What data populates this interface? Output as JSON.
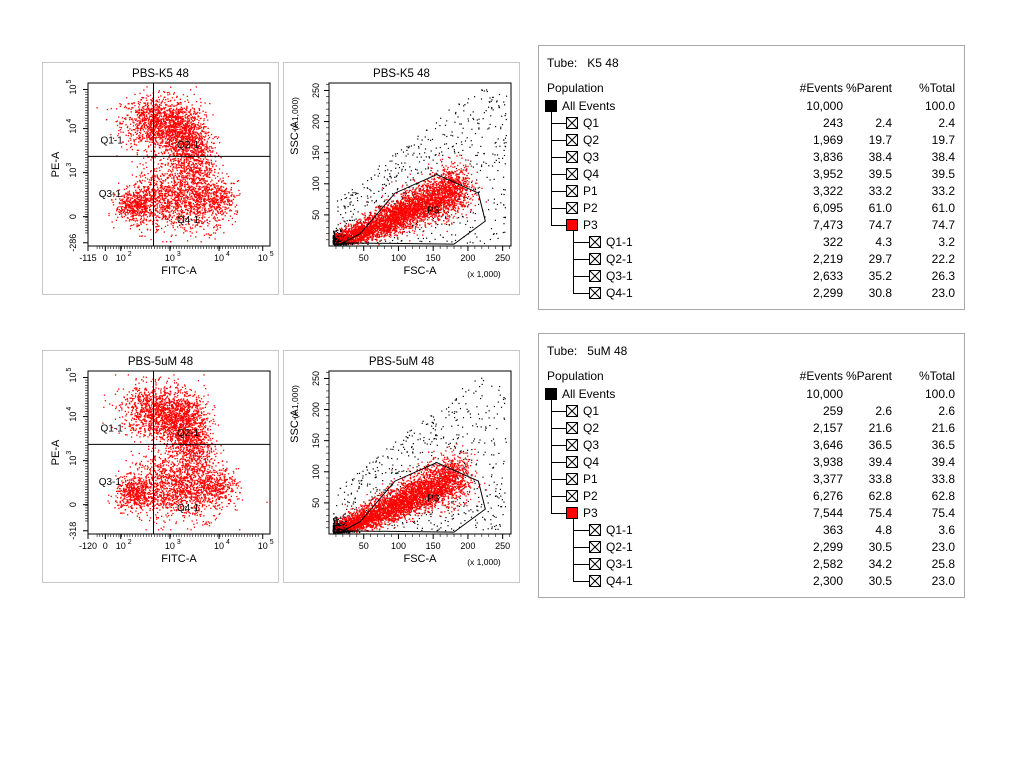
{
  "sets": [
    {
      "quad": {
        "title": "PBS-K5 48",
        "xlabel": "FITC-A",
        "ylabel": "PE-A",
        "xticks": [
          "-115",
          "0",
          "10",
          "10",
          "10",
          "10"
        ],
        "xexp": [
          "",
          "",
          "2",
          "3",
          "4",
          "5"
        ],
        "yticks": [
          "-286",
          "0",
          "10",
          "10",
          "10"
        ],
        "yexp": [
          "",
          "",
          "3",
          "4",
          "5"
        ],
        "gates": [
          "Q1-1",
          "Q2-1",
          "Q3-1",
          "Q4-1"
        ]
      },
      "fsc": {
        "title": "PBS-K5 48",
        "xlabel": "FSC-A",
        "ylabel": "SSC-A",
        "scale": "(x 1,000)",
        "xticks": [
          "50",
          "100",
          "150",
          "200",
          "250"
        ],
        "yticks": [
          "50",
          "100",
          "150",
          "200",
          "250"
        ],
        "gate": "P3"
      },
      "hierarchy": {
        "tube_label": "Tube:",
        "tube_name": "K5 48",
        "headers": {
          "population": "Population",
          "events": "#Events",
          "parent": "%Parent",
          "total": "%Total"
        },
        "rows": [
          {
            "name": "All Events",
            "level": 0,
            "icon": "black",
            "events": "10,000",
            "parent": "",
            "total": "100.0"
          },
          {
            "name": "Q1",
            "level": 1,
            "icon": "x",
            "events": "243",
            "parent": "2.4",
            "total": "2.4"
          },
          {
            "name": "Q2",
            "level": 1,
            "icon": "x",
            "events": "1,969",
            "parent": "19.7",
            "total": "19.7"
          },
          {
            "name": "Q3",
            "level": 1,
            "icon": "x",
            "events": "3,836",
            "parent": "38.4",
            "total": "38.4"
          },
          {
            "name": "Q4",
            "level": 1,
            "icon": "x",
            "events": "3,952",
            "parent": "39.5",
            "total": "39.5"
          },
          {
            "name": "P1",
            "level": 1,
            "icon": "x",
            "events": "3,322",
            "parent": "33.2",
            "total": "33.2"
          },
          {
            "name": "P2",
            "level": 1,
            "icon": "x",
            "events": "6,095",
            "parent": "61.0",
            "total": "61.0"
          },
          {
            "name": "P3",
            "level": 1,
            "icon": "red",
            "events": "7,473",
            "parent": "74.7",
            "total": "74.7"
          },
          {
            "name": "Q1-1",
            "level": 2,
            "icon": "x",
            "events": "322",
            "parent": "4.3",
            "total": "3.2"
          },
          {
            "name": "Q2-1",
            "level": 2,
            "icon": "x",
            "events": "2,219",
            "parent": "29.7",
            "total": "22.2"
          },
          {
            "name": "Q3-1",
            "level": 2,
            "icon": "x",
            "events": "2,633",
            "parent": "35.2",
            "total": "26.3"
          },
          {
            "name": "Q4-1",
            "level": 2,
            "icon": "x",
            "events": "2,299",
            "parent": "30.8",
            "total": "23.0"
          }
        ]
      }
    },
    {
      "quad": {
        "title": "PBS-5uM 48",
        "xlabel": "FITC-A",
        "ylabel": "PE-A",
        "xticks": [
          "-120",
          "0",
          "10",
          "10",
          "10",
          "10"
        ],
        "xexp": [
          "",
          "",
          "2",
          "3",
          "4",
          "5"
        ],
        "yticks": [
          "-318",
          "0",
          "10",
          "10",
          "10"
        ],
        "yexp": [
          "",
          "",
          "3",
          "4",
          "5"
        ],
        "gates": [
          "Q1-1",
          "Q2-1",
          "Q3-1",
          "Q4-1"
        ]
      },
      "fsc": {
        "title": "PBS-5uM 48",
        "xlabel": "FSC-A",
        "ylabel": "SSC-A",
        "scale": "(x 1,000)",
        "xticks": [
          "50",
          "100",
          "150",
          "200",
          "250"
        ],
        "yticks": [
          "50",
          "100",
          "150",
          "200",
          "250"
        ],
        "gate": "P3"
      },
      "hierarchy": {
        "tube_label": "Tube:",
        "tube_name": "5uM 48",
        "headers": {
          "population": "Population",
          "events": "#Events",
          "parent": "%Parent",
          "total": "%Total"
        },
        "rows": [
          {
            "name": "All Events",
            "level": 0,
            "icon": "black",
            "events": "10,000",
            "parent": "",
            "total": "100.0"
          },
          {
            "name": "Q1",
            "level": 1,
            "icon": "x",
            "events": "259",
            "parent": "2.6",
            "total": "2.6"
          },
          {
            "name": "Q2",
            "level": 1,
            "icon": "x",
            "events": "2,157",
            "parent": "21.6",
            "total": "21.6"
          },
          {
            "name": "Q3",
            "level": 1,
            "icon": "x",
            "events": "3,646",
            "parent": "36.5",
            "total": "36.5"
          },
          {
            "name": "Q4",
            "level": 1,
            "icon": "x",
            "events": "3,938",
            "parent": "39.4",
            "total": "39.4"
          },
          {
            "name": "P1",
            "level": 1,
            "icon": "x",
            "events": "3,377",
            "parent": "33.8",
            "total": "33.8"
          },
          {
            "name": "P2",
            "level": 1,
            "icon": "x",
            "events": "6,276",
            "parent": "62.8",
            "total": "62.8"
          },
          {
            "name": "P3",
            "level": 1,
            "icon": "red",
            "events": "7,544",
            "parent": "75.4",
            "total": "75.4"
          },
          {
            "name": "Q1-1",
            "level": 2,
            "icon": "x",
            "events": "363",
            "parent": "4.8",
            "total": "3.6"
          },
          {
            "name": "Q2-1",
            "level": 2,
            "icon": "x",
            "events": "2,299",
            "parent": "30.5",
            "total": "23.0"
          },
          {
            "name": "Q3-1",
            "level": 2,
            "icon": "x",
            "events": "2,582",
            "parent": "34.2",
            "total": "25.8"
          },
          {
            "name": "Q4-1",
            "level": 2,
            "icon": "x",
            "events": "2,300",
            "parent": "30.5",
            "total": "23.0"
          }
        ]
      }
    }
  ],
  "chart_data": [
    {
      "type": "scatter",
      "title": "PBS-K5 48",
      "xlabel": "FITC-A",
      "ylabel": "PE-A",
      "x_scale": "biexponential",
      "y_scale": "biexponential",
      "xlim": [
        -115,
        100000
      ],
      "ylim": [
        -286,
        100000
      ],
      "quadrant_gates": [
        {
          "name": "Q1-1",
          "percent_of_parent": 4.3
        },
        {
          "name": "Q2-1",
          "percent_of_parent": 29.7
        },
        {
          "name": "Q3-1",
          "percent_of_parent": 35.2
        },
        {
          "name": "Q4-1",
          "percent_of_parent": 30.8
        }
      ],
      "point_color": "#ff0000"
    },
    {
      "type": "scatter",
      "title": "PBS-K5 48",
      "xlabel": "FSC-A",
      "ylabel": "SSC-A",
      "units": "(x 1,000)",
      "xlim": [
        0,
        262
      ],
      "ylim": [
        0,
        262
      ],
      "gates": [
        {
          "name": "P3",
          "shape": "polygon",
          "percent_of_parent": 74.7
        }
      ],
      "colors": {
        "gated": "#ff0000",
        "ungated": "#000000"
      }
    },
    {
      "type": "scatter",
      "title": "PBS-5uM 48",
      "xlabel": "FITC-A",
      "ylabel": "PE-A",
      "x_scale": "biexponential",
      "y_scale": "biexponential",
      "xlim": [
        -120,
        100000
      ],
      "ylim": [
        -318,
        100000
      ],
      "quadrant_gates": [
        {
          "name": "Q1-1",
          "percent_of_parent": 4.8
        },
        {
          "name": "Q2-1",
          "percent_of_parent": 30.5
        },
        {
          "name": "Q3-1",
          "percent_of_parent": 34.2
        },
        {
          "name": "Q4-1",
          "percent_of_parent": 30.5
        }
      ],
      "point_color": "#ff0000"
    },
    {
      "type": "scatter",
      "title": "PBS-5uM 48",
      "xlabel": "FSC-A",
      "ylabel": "SSC-A",
      "units": "(x 1,000)",
      "xlim": [
        0,
        262
      ],
      "ylim": [
        0,
        262
      ],
      "gates": [
        {
          "name": "P3",
          "shape": "polygon",
          "percent_of_parent": 75.4
        }
      ],
      "colors": {
        "gated": "#ff0000",
        "ungated": "#000000"
      }
    }
  ]
}
